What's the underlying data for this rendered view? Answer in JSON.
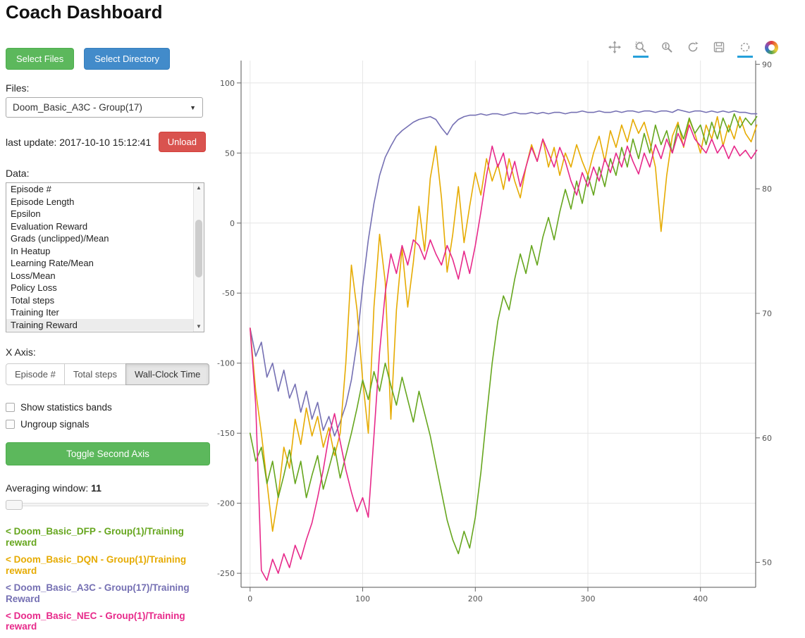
{
  "title": "Coach Dashboard",
  "sidebar": {
    "select_files": "Select Files",
    "select_directory": "Select Directory",
    "files_label": "Files:",
    "files_value": "Doom_Basic_A3C - Group(17)",
    "last_update": "last update: 2017-10-10 15:12:41",
    "unload": "Unload",
    "data_label": "Data:",
    "data_items": [
      "Episode #",
      "Episode Length",
      "Epsilon",
      "Evaluation Reward",
      "Grads (unclipped)/Mean",
      "In Heatup",
      "Learning Rate/Mean",
      "Loss/Mean",
      "Policy Loss",
      "Total steps",
      "Training Iter",
      "Training Reward"
    ],
    "selected_data_item": "Training Reward",
    "x_axis_label": "X Axis:",
    "x_axis_options": [
      "Episode #",
      "Total steps",
      "Wall-Clock Time"
    ],
    "x_axis_selected": "Wall-Clock Time",
    "checkboxes": [
      {
        "label": "Show statistics bands",
        "checked": false
      },
      {
        "label": "Ungroup signals",
        "checked": false
      }
    ],
    "toggle_second_axis": "Toggle Second Axis",
    "averaging_label": "Averaging window:",
    "averaging_value": "11",
    "legend": [
      {
        "label": "< Doom_Basic_DFP - Group(1)/Training reward",
        "color": "#66a61e"
      },
      {
        "label": "< Doom_Basic_DQN - Group(1)/Training reward",
        "color": "#e6ab02"
      },
      {
        "label": "< Doom_Basic_A3C - Group(17)/Training Reward",
        "color": "#7570b3"
      },
      {
        "label": "< Doom_Basic_NEC - Group(1)/Training reward",
        "color": "#e7298a"
      }
    ]
  },
  "plot_toolbar": {
    "tools": [
      {
        "name": "pan-tool",
        "active": false
      },
      {
        "name": "box-zoom-tool",
        "active": true
      },
      {
        "name": "wheel-zoom-tool",
        "active": false
      },
      {
        "name": "reset-tool",
        "active": false
      },
      {
        "name": "save-tool",
        "active": false
      },
      {
        "name": "hover-tool",
        "active": true
      },
      {
        "name": "bokeh-logo",
        "active": false
      }
    ],
    "active_color": "#26a0da"
  },
  "chart_data": {
    "type": "line",
    "x0": 0,
    "dx": 5,
    "x_range": [
      -8,
      449
    ],
    "y_left_range": [
      -260,
      116
    ],
    "y_right_range": [
      48,
      90.3
    ],
    "x_ticks": [
      0,
      100,
      200,
      300,
      400
    ],
    "y_left_ticks": [
      100,
      50,
      0,
      -50,
      -100,
      -150,
      -200,
      -250
    ],
    "y_right_ticks": [
      90,
      80,
      70,
      60,
      50
    ],
    "grid": true,
    "series": [
      {
        "name": "Doom_Basic_A3C - Group(17)/Training Reward",
        "color": "#7570b3",
        "values": [
          -75,
          -95,
          -85,
          -110,
          -100,
          -120,
          -105,
          -125,
          -115,
          -135,
          -120,
          -140,
          -128,
          -148,
          -138,
          -152,
          -142,
          -130,
          -112,
          -85,
          -45,
          -12,
          14,
          34,
          47,
          55,
          62,
          66,
          69,
          72,
          74,
          75,
          76,
          74,
          68,
          63,
          70,
          74,
          76,
          77,
          77,
          78,
          77,
          78,
          78,
          77,
          78,
          79,
          78,
          78,
          79,
          78,
          79,
          78,
          79,
          79,
          78,
          79,
          79,
          80,
          79,
          79,
          80,
          79,
          79,
          80,
          79,
          80,
          80,
          79,
          80,
          80,
          79,
          80,
          80,
          79,
          81,
          80,
          79,
          80,
          80,
          79,
          80,
          79,
          80,
          79,
          80,
          79,
          79,
          78,
          78
        ]
      },
      {
        "name": "Doom_Basic_DQN - Group(1)/Training reward",
        "color": "#e6ab02",
        "values": [
          -75,
          -120,
          -150,
          -185,
          -220,
          -195,
          -160,
          -175,
          -140,
          -158,
          -132,
          -152,
          -138,
          -160,
          -146,
          -166,
          -150,
          -100,
          -30,
          -62,
          -112,
          -150,
          -60,
          -8,
          -42,
          -140,
          -62,
          -18,
          -60,
          -28,
          12,
          -20,
          32,
          55,
          18,
          -35,
          -8,
          26,
          -14,
          12,
          36,
          20,
          46,
          30,
          42,
          24,
          46,
          30,
          18,
          40,
          56,
          44,
          60,
          40,
          54,
          34,
          50,
          40,
          56,
          44,
          34,
          50,
          62,
          44,
          66,
          54,
          70,
          58,
          74,
          64,
          72,
          58,
          40,
          -6,
          34,
          62,
          72,
          54,
          74,
          64,
          50,
          70,
          60,
          76,
          55,
          70,
          60,
          76,
          64,
          58,
          70
        ]
      },
      {
        "name": "Doom_Basic_DFP - Group(1)/Training reward",
        "color": "#66a61e",
        "values": [
          -150,
          -170,
          -160,
          -186,
          -170,
          -196,
          -180,
          -162,
          -186,
          -170,
          -196,
          -180,
          -166,
          -190,
          -175,
          -160,
          -182,
          -166,
          -150,
          -132,
          -112,
          -126,
          -106,
          -120,
          -100,
          -116,
          -130,
          -110,
          -126,
          -142,
          -120,
          -136,
          -152,
          -172,
          -192,
          -212,
          -226,
          -236,
          -220,
          -232,
          -210,
          -178,
          -138,
          -100,
          -70,
          -52,
          -62,
          -40,
          -22,
          -36,
          -16,
          -30,
          -10,
          4,
          -12,
          8,
          24,
          10,
          30,
          14,
          34,
          20,
          40,
          26,
          46,
          34,
          54,
          40,
          60,
          46,
          64,
          50,
          70,
          56,
          66,
          50,
          70,
          60,
          75,
          64,
          70,
          56,
          72,
          60,
          75,
          65,
          78,
          68,
          75,
          70,
          76
        ]
      },
      {
        "name": "Doom_Basic_NEC - Group(1)/Training reward",
        "color": "#e7298a",
        "values": [
          -75,
          -130,
          -248,
          -255,
          -240,
          -250,
          -236,
          -246,
          -230,
          -240,
          -226,
          -214,
          -196,
          -176,
          -152,
          -136,
          -156,
          -176,
          -192,
          -206,
          -196,
          -210,
          -152,
          -92,
          -50,
          -22,
          -36,
          -16,
          -30,
          -12,
          -16,
          -26,
          -12,
          -22,
          -30,
          -16,
          -26,
          -40,
          -20,
          -36,
          -16,
          8,
          34,
          55,
          40,
          50,
          30,
          44,
          26,
          40,
          54,
          44,
          60,
          50,
          40,
          54,
          44,
          30,
          20,
          36,
          26,
          40,
          30,
          46,
          36,
          50,
          40,
          55,
          44,
          35,
          50,
          40,
          56,
          46,
          60,
          50,
          64,
          55,
          70,
          60,
          55,
          50,
          60,
          50,
          56,
          46,
          55,
          48,
          52,
          46,
          52
        ]
      }
    ]
  }
}
